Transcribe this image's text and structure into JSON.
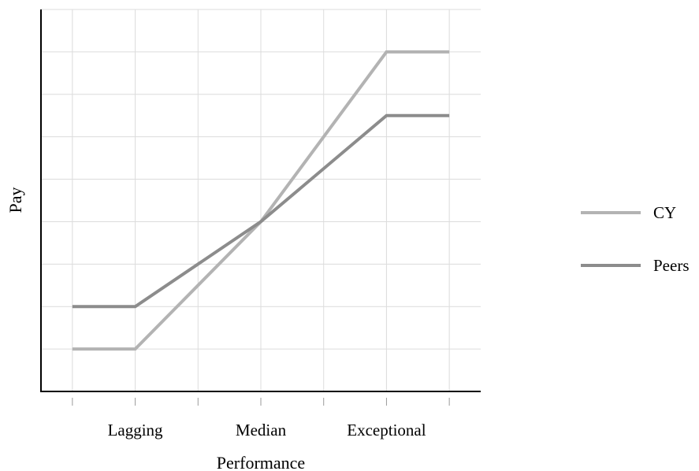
{
  "chart_data": {
    "type": "line",
    "xlabel": "Performance",
    "ylabel": "Pay",
    "x_tick_labels": [
      {
        "x": 2,
        "label": "Lagging"
      },
      {
        "x": 4,
        "label": "Median"
      },
      {
        "x": 6,
        "label": "Exceptional"
      }
    ],
    "xlim": [
      0.5,
      7.5
    ],
    "ylim": [
      0,
      9
    ],
    "x_ticks": [
      1,
      2,
      3,
      4,
      5,
      6,
      7
    ],
    "y_gridlines": [
      1,
      2,
      3,
      4,
      5,
      6,
      7,
      8,
      9
    ],
    "grid": true,
    "legend_position": "right",
    "series": [
      {
        "name": "CY",
        "color": "#b3b3b3",
        "points": [
          [
            1,
            1
          ],
          [
            2,
            1
          ],
          [
            4,
            4
          ],
          [
            6,
            8
          ],
          [
            7,
            8
          ]
        ]
      },
      {
        "name": "Peers",
        "color": "#8c8c8c",
        "points": [
          [
            1,
            2
          ],
          [
            2,
            2
          ],
          [
            4,
            4
          ],
          [
            6,
            6.5
          ],
          [
            7,
            6.5
          ]
        ]
      }
    ]
  }
}
